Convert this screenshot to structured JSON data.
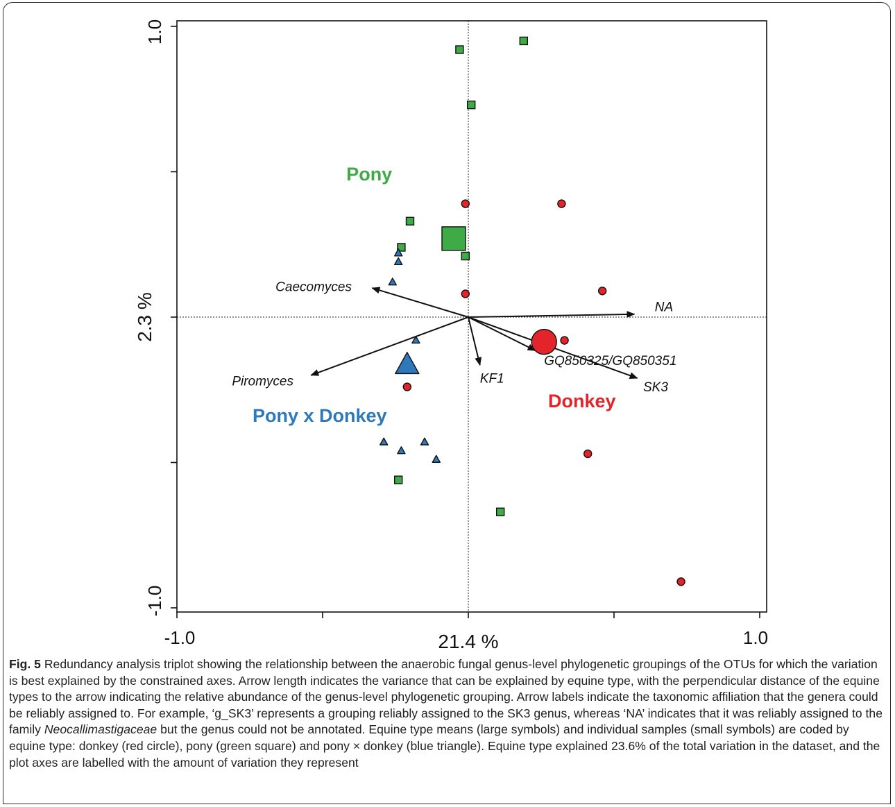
{
  "chart_data": {
    "type": "scatter",
    "subtype": "rda-triplot",
    "xlabel": "21.4 %",
    "ylabel": "2.3 %",
    "xlim": [
      -1.0,
      1.0
    ],
    "ylim": [
      -1.0,
      1.0
    ],
    "x_tick_labels": [
      "-1.0",
      "1.0"
    ],
    "y_tick_labels": [
      "1.0",
      "-1.0"
    ],
    "x_ticks": [
      -1.0,
      -0.5,
      0.0,
      0.5,
      1.0
    ],
    "y_ticks": [
      1.0,
      0.5,
      0.0,
      -0.5,
      -1.0
    ],
    "zero_lines": true,
    "colors": {
      "donkey": "#e3242b",
      "pony": "#3fab47",
      "hybrid": "#2f78b9",
      "arrow": "#111111"
    },
    "group_labels": [
      {
        "key": "pony",
        "text": "Pony",
        "x": -0.34,
        "y": 0.47
      },
      {
        "key": "hybrid",
        "text": "Pony x Donkey",
        "x": -0.51,
        "y": -0.36
      },
      {
        "key": "donkey",
        "text": "Donkey",
        "x": 0.39,
        "y": -0.31
      }
    ],
    "arrows": [
      {
        "label": "NA",
        "x": 0.57,
        "y": 0.01,
        "label_x": 0.64,
        "label_y": 0.02,
        "anchor": "start"
      },
      {
        "label": "Caecomyces",
        "x": -0.33,
        "y": 0.1,
        "label_x": -0.4,
        "label_y": 0.09,
        "anchor": "end"
      },
      {
        "label": "Piromyces",
        "x": -0.54,
        "y": -0.2,
        "label_x": -0.6,
        "label_y": -0.235,
        "anchor": "end"
      },
      {
        "label": "KF1",
        "x": 0.04,
        "y": -0.165,
        "label_x": 0.04,
        "label_y": -0.225,
        "anchor": "start"
      },
      {
        "label": "GQ850325/GQ850351",
        "x": 0.23,
        "y": -0.115,
        "label_x": 0.26,
        "label_y": -0.165,
        "anchor": "start"
      },
      {
        "label": "SK3",
        "x": 0.58,
        "y": -0.21,
        "label_x": 0.6,
        "label_y": -0.255,
        "anchor": "start"
      }
    ],
    "series": [
      {
        "name": "donkey",
        "marker": "circle",
        "values": [
          [
            -0.01,
            0.39
          ],
          [
            0.32,
            0.39
          ],
          [
            -0.01,
            0.08
          ],
          [
            0.46,
            0.09
          ],
          [
            0.33,
            -0.08
          ],
          [
            -0.21,
            -0.24
          ],
          [
            0.41,
            -0.47
          ],
          [
            0.73,
            -0.91
          ]
        ]
      },
      {
        "name": "pony",
        "marker": "square",
        "values": [
          [
            -0.03,
            0.92
          ],
          [
            0.19,
            0.95
          ],
          [
            0.01,
            0.73
          ],
          [
            -0.2,
            0.33
          ],
          [
            -0.23,
            0.24
          ],
          [
            -0.01,
            0.21
          ],
          [
            -0.24,
            -0.56
          ],
          [
            0.11,
            -0.67
          ]
        ]
      },
      {
        "name": "hybrid",
        "marker": "triangle",
        "values": [
          [
            -0.24,
            0.22
          ],
          [
            -0.24,
            0.19
          ],
          [
            -0.26,
            0.12
          ],
          [
            -0.18,
            -0.08
          ],
          [
            -0.29,
            -0.43
          ],
          [
            -0.23,
            -0.46
          ],
          [
            -0.15,
            -0.43
          ],
          [
            -0.11,
            -0.49
          ]
        ]
      }
    ],
    "means": [
      {
        "name": "donkey",
        "marker": "circle",
        "x": 0.26,
        "y": -0.085
      },
      {
        "name": "pony",
        "marker": "square",
        "x": -0.05,
        "y": 0.27
      },
      {
        "name": "hybrid",
        "marker": "triangle",
        "x": -0.21,
        "y": -0.165
      }
    ]
  },
  "caption": {
    "label": "Fig. 5",
    "text_1": " Redundancy analysis triplot showing the relationship between the anaerobic fungal genus-level phylogenetic groupings of the OTUs for which the variation is best explained by the constrained axes. Arrow length indicates the variance that can be explained by equine type, with the perpendicular distance of the equine types to the arrow indicating the relative abundance of the genus-level phylogenetic grouping. Arrow labels indicate the taxonomic affiliation that the genera could be reliably assigned to. For example, ‘g_SK3’ represents a grouping reliably assigned to the SK3 genus, whereas ‘NA’ indicates that it was reliably assigned to the family ",
    "italic": "Neocallimastigaceae",
    "text_2": " but the genus could not be annotated. Equine type means (large symbols) and individual samples (small symbols) are coded by equine type: donkey (red circle), pony (green square) and pony × donkey (blue triangle). Equine type explained 23.6% of the total variation in the dataset, and the plot axes are labelled with the amount of variation they represent"
  }
}
